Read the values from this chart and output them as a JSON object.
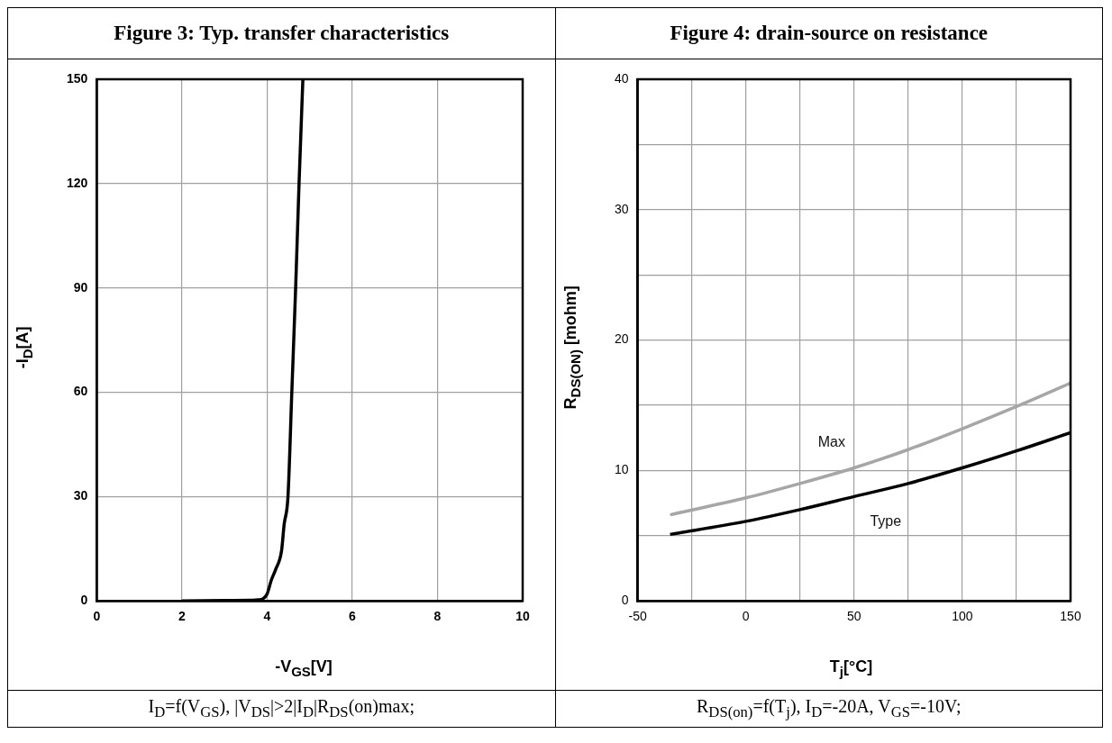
{
  "chart_data": [
    {
      "type": "line",
      "title": "Figure 3: Typ. transfer characteristics",
      "xlabel": "-V$_{GS}$[V]",
      "ylabel": "-I$_{D}$[A]",
      "xlim": [
        0,
        10
      ],
      "xticks": [
        0,
        2,
        4,
        6,
        8,
        10
      ],
      "ylim": [
        0,
        150
      ],
      "yticks": [
        0,
        30,
        60,
        90,
        120,
        150
      ],
      "grid": true,
      "legend": false,
      "series": [
        {
          "color": "#000000",
          "x": [
            2,
            3,
            3.6,
            3.8,
            3.9,
            4.0,
            4.1,
            4.2,
            4.34,
            4.4,
            4.49,
            4.58,
            4.67,
            4.75,
            4.84
          ],
          "values": [
            0,
            0.1,
            0.2,
            0.3,
            0.6,
            2,
            6,
            9,
            14.5,
            22,
            30,
            60,
            90,
            120,
            150
          ]
        }
      ],
      "annotations": [
        "I$_{D}$=f(V$_{GS}$), |V$_{DS}$|>2|I$_{D}$|R$_{DS}$(on)max;"
      ]
    },
    {
      "type": "line",
      "title": "Figure 4: drain-source on resistance",
      "xlabel": "T$_{j}$[°C]",
      "ylabel": "R$_{DS(ON)}$ [mohm]",
      "xlim": [
        -50,
        150
      ],
      "xticks": [
        -50,
        {
          "value": -25,
          "label": null
        },
        0,
        {
          "value": 25,
          "label": null
        },
        50,
        {
          "value": 75,
          "label": null
        },
        100,
        {
          "value": 125,
          "label": null
        },
        150
      ],
      "ylim": [
        0,
        40
      ],
      "yticks": [
        0,
        {
          "value": 5,
          "label": null
        },
        10,
        {
          "value": 15,
          "label": null
        },
        20,
        {
          "value": 25,
          "label": null
        },
        30,
        {
          "value": 35,
          "label": null
        },
        40
      ],
      "grid": true,
      "legend": false,
      "series": [
        {
          "name": "Max",
          "color": "#a6a6a6",
          "x": [
            -35,
            0,
            25,
            50,
            75,
            100,
            125,
            150
          ],
          "values": [
            6.6,
            7.9,
            9,
            10.2,
            11.6,
            13.2,
            14.9,
            16.7
          ]
        },
        {
          "name": "Type",
          "color": "#000000",
          "x": [
            -35,
            0,
            25,
            50,
            75,
            100,
            125,
            150
          ],
          "values": [
            5.1,
            6.1,
            7,
            8,
            9,
            10.2,
            11.5,
            12.9
          ]
        }
      ],
      "annotations": [
        "R$_{DS(on)}$=f(T$_{j}$), I$_{D}$=-20A, V$_{GS}$=-10V;"
      ]
    }
  ]
}
